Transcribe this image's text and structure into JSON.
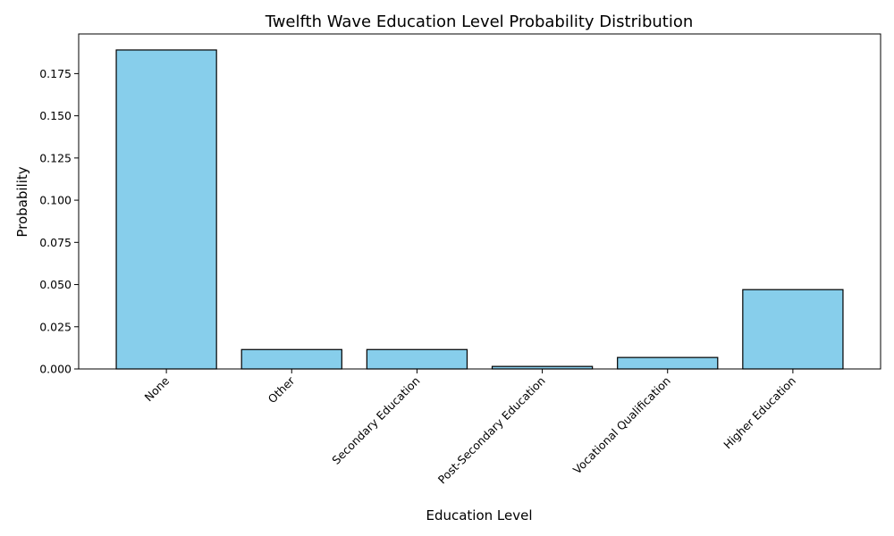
{
  "chart_data": {
    "type": "bar",
    "title": "Twelfth Wave Education Level Probability Distribution",
    "xlabel": "Education Level",
    "ylabel": "Probability",
    "categories": [
      "None",
      "Other",
      "Secondary Education",
      "Post-Secondary Education",
      "Vocational Qualification",
      "Higher Education"
    ],
    "values": [
      0.189,
      0.0115,
      0.0115,
      0.0015,
      0.0068,
      0.047
    ],
    "ylim": [
      0,
      0.1985
    ],
    "yticks": [
      "0.000",
      "0.025",
      "0.050",
      "0.075",
      "0.100",
      "0.125",
      "0.150",
      "0.175"
    ],
    "bar_color": "#87ceeb",
    "edge_color": "#000000",
    "grid": false,
    "legend": "none"
  }
}
